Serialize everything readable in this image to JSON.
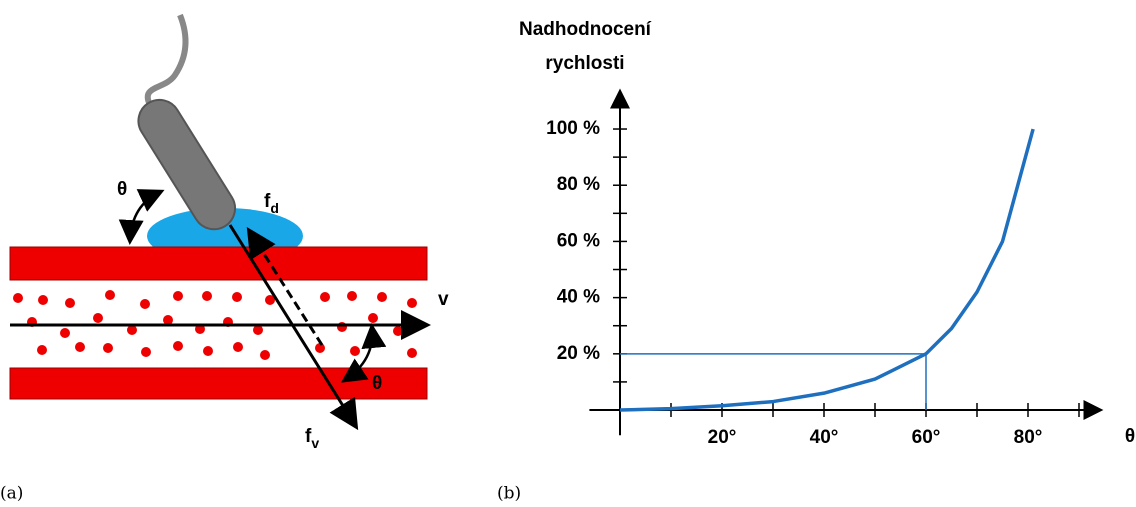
{
  "diagram": {
    "angle_top": "θ",
    "fd": {
      "base": "f",
      "sub": "d"
    },
    "velocity": "v",
    "angle_bottom": "θ",
    "fv": {
      "base": "f",
      "sub": "v"
    }
  },
  "captions": [
    "(a)",
    "(b)"
  ],
  "chart_data": {
    "type": "line",
    "y_label": [
      "Nadhodnocení",
      "rychlosti"
    ],
    "x_label": "θ",
    "x": [
      0,
      10,
      20,
      30,
      40,
      50,
      60,
      65,
      70,
      75,
      81
    ],
    "series": [
      {
        "color": "#1f6fbf",
        "values": [
          0,
          0.5,
          1.5,
          3,
          6,
          11,
          20,
          29,
          42,
          60,
          100
        ]
      }
    ],
    "xlim": [
      -6,
      94
    ],
    "ylim": [
      -9,
      113
    ],
    "xticks": [
      {
        "value": 20,
        "label": "20°"
      },
      {
        "value": 40,
        "label": "40°"
      },
      {
        "value": 60,
        "label": "60°"
      },
      {
        "value": 80,
        "label": "80°"
      }
    ],
    "xminor_ticks": [
      10,
      30,
      50,
      70,
      90
    ],
    "yticks": [
      {
        "value": 20,
        "label": "20 %"
      },
      {
        "value": 40,
        "label": "40 %"
      },
      {
        "value": 60,
        "label": "60 %"
      },
      {
        "value": 80,
        "label": "80 %"
      },
      {
        "value": 100,
        "label": "100 %"
      }
    ],
    "yminor_ticks": [
      10,
      30,
      50,
      70,
      90
    ],
    "guide": {
      "x": 60,
      "y": 20
    }
  }
}
